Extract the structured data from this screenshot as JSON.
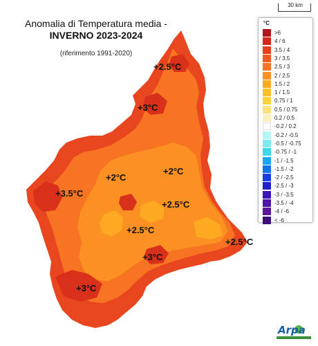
{
  "title": {
    "line1": "Anomalia di Temperatura media -",
    "line2": "INVERNO 2023-2024",
    "reference": "(riferimento 1991-2020)"
  },
  "scalebar": {
    "label": "30 km"
  },
  "legend": {
    "unit": "°C",
    "entries": [
      {
        "label": ">6",
        "color": "#b0161b"
      },
      {
        "label": "4 / 6",
        "color": "#d4281b"
      },
      {
        "label": "3.5 / 4",
        "color": "#e8401e"
      },
      {
        "label": "3 / 3.5",
        "color": "#f25a1f"
      },
      {
        "label": "2.5 / 3",
        "color": "#f77422"
      },
      {
        "label": "2 / 2.5",
        "color": "#fb9023"
      },
      {
        "label": "1.5 / 2",
        "color": "#fdaa22"
      },
      {
        "label": "1 / 1.5",
        "color": "#fec12c"
      },
      {
        "label": "0.75 / 1",
        "color": "#fdd23a"
      },
      {
        "label": "0.5 / 0.75",
        "color": "#fde17a"
      },
      {
        "label": "0.2 / 0.5",
        "color": "#fbeec0"
      },
      {
        "label": "-0.2 / 0.2",
        "color": "#ffffff"
      },
      {
        "label": "-0.2 / -0.5",
        "color": "#b7f4f6"
      },
      {
        "label": "-0.5 / -0.75",
        "color": "#7ee9ee"
      },
      {
        "label": "-0.75 / -1",
        "color": "#3dd8ea"
      },
      {
        "label": "-1 / -1.5",
        "color": "#1aa8ee"
      },
      {
        "label": "-1.5 / -2",
        "color": "#1575e8"
      },
      {
        "label": "-2 / -2.5",
        "color": "#1a3fe0"
      },
      {
        "label": "-2.5 / -3",
        "color": "#2420c8"
      },
      {
        "label": "-3 / -3.5",
        "color": "#3a18b6"
      },
      {
        "label": "-3.5 / -4",
        "color": "#4d14a8"
      },
      {
        "label": "-4 / -6",
        "color": "#5a1698"
      },
      {
        "label": "< -6",
        "color": "#3b0f7a"
      }
    ]
  },
  "anomaly_labels": [
    {
      "text": "+2.5°C"
    },
    {
      "text": "+3°C"
    },
    {
      "text": "+2°C"
    },
    {
      "text": "+2°C"
    },
    {
      "text": "+3.5°C"
    },
    {
      "text": "+2.5°C"
    },
    {
      "text": "+2.5°C"
    },
    {
      "text": "+2.5°C"
    },
    {
      "text": "+3°C"
    },
    {
      "text": "+3°C"
    }
  ],
  "logo": {
    "text": "Arpa"
  },
  "colors": {
    "outer": "#e8461f",
    "mid": "#f77422",
    "inner": "#fb9023",
    "core": "#fdaa22",
    "hot": "#d9301b"
  }
}
